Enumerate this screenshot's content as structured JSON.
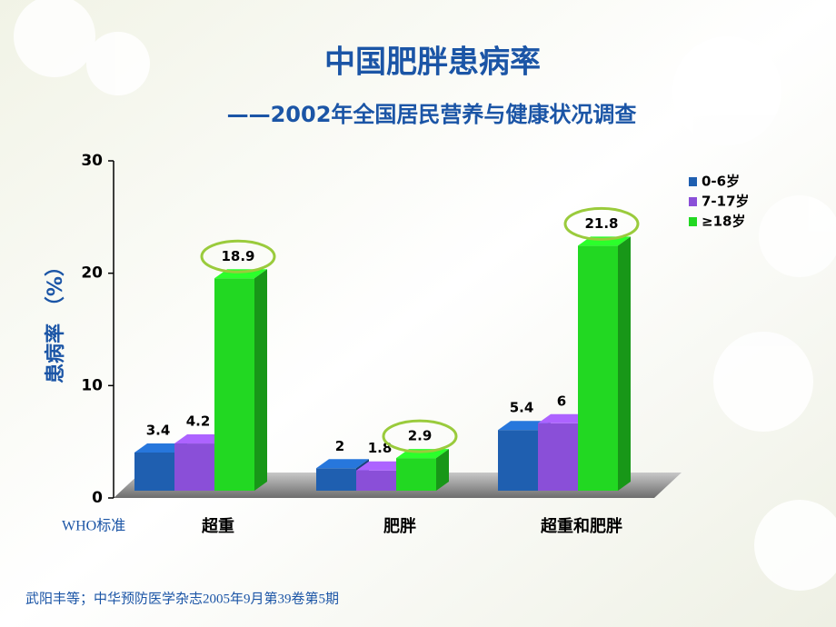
{
  "chart_data": {
    "type": "bar3d",
    "title": "中国肥胖患病率",
    "subtitle": "——2002年全国居民营养与健康状况调查",
    "y_label": "患病率 （%）",
    "annotation": "WHO标准",
    "footnote": "武阳丰等；中华预防医学杂志2005年9月第39卷第5期",
    "categories": [
      "超重",
      "肥胖",
      "超重和肥胖"
    ],
    "series": [
      {
        "name": "0-6岁",
        "color": "#1f5fb0",
        "values": [
          3.4,
          2,
          5.4
        ]
      },
      {
        "name": "7-17岁",
        "color": "#8a4fd8",
        "values": [
          4.2,
          1.8,
          6
        ]
      },
      {
        "name": "≥18岁",
        "color": "#22d822",
        "values": [
          18.9,
          2.9,
          21.8
        ]
      }
    ],
    "ylim": [
      0,
      30
    ],
    "yticks": [
      0,
      10,
      20,
      30
    ]
  }
}
